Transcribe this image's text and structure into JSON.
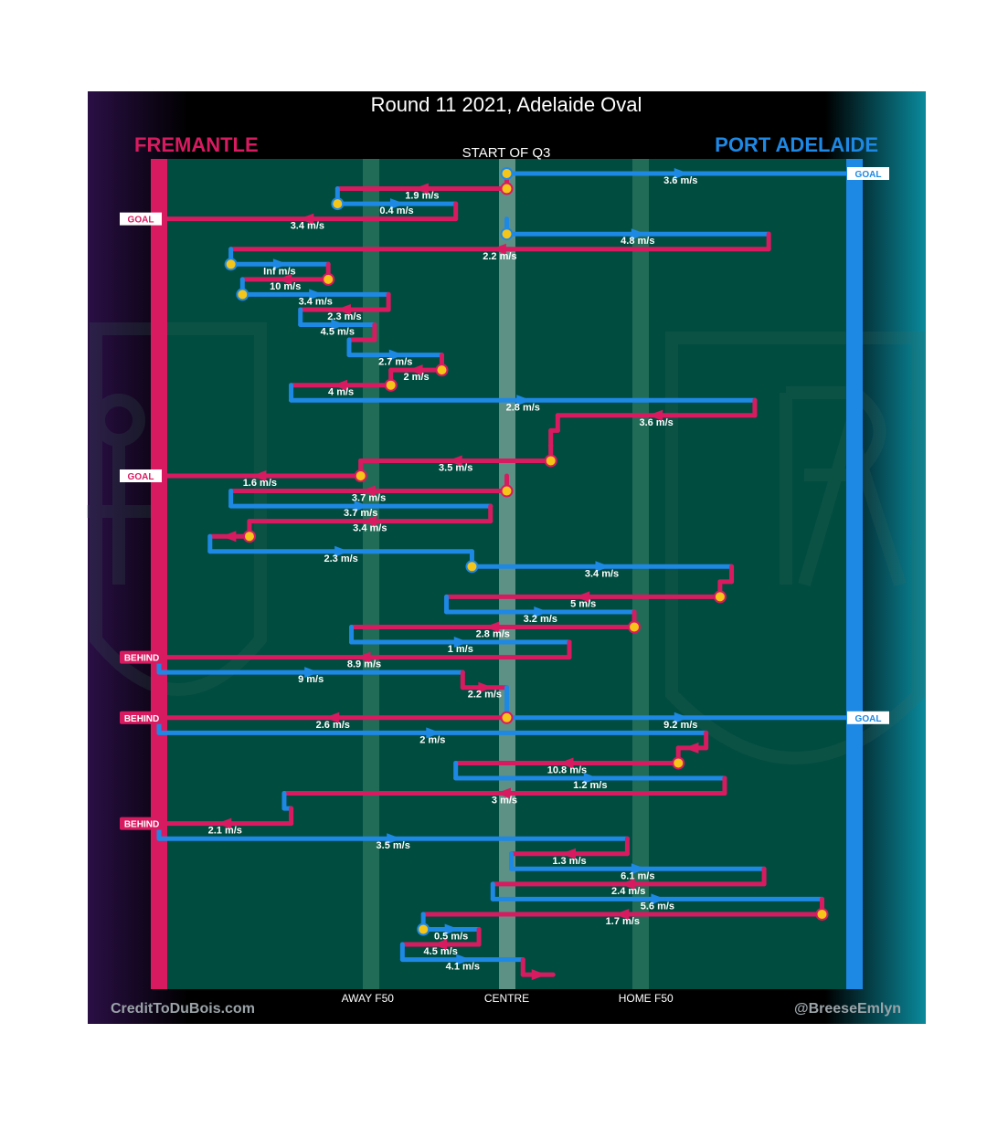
{
  "header": {
    "title": "Round 11 2021, Adelaide Oval",
    "subtitle": "START OF Q3",
    "team_left": "FREMANTLE",
    "team_right": "PORT ADELAIDE",
    "credit_left": "CreditToDuBois.com",
    "credit_right": "@BreeseEmlyn"
  },
  "colors": {
    "fremantle": "#d81b60",
    "port": "#1e88e5",
    "field": "#004c3f",
    "marker": "#f5c518"
  },
  "chart_data": {
    "type": "line",
    "x_ticks": [
      {
        "label": "AWAY F50",
        "x": -0.6
      },
      {
        "label": "CENTRE",
        "x": 0
      },
      {
        "label": "HOME F50",
        "x": 0.6
      }
    ],
    "xlim": [
      -1.5,
      1.5
    ],
    "tags": [
      {
        "label": "GOAL",
        "side": "right",
        "row": 0
      },
      {
        "label": "GOAL",
        "side": "left",
        "row": 3
      },
      {
        "label": "GOAL",
        "side": "left",
        "row": 20
      },
      {
        "label": "BEHIND",
        "side": "left",
        "row": 32
      },
      {
        "label": "GOAL",
        "side": "right",
        "row": 36
      },
      {
        "label": "BEHIND",
        "side": "left",
        "row": 36
      },
      {
        "label": "BEHIND",
        "side": "left",
        "row": 43
      }
    ],
    "chains": [
      {
        "team": "port",
        "x0": 0.0,
        "x1": 1.5,
        "row": 0,
        "speed": "3.6 m/s",
        "start": "turnover"
      },
      {
        "team": "fremantle",
        "x0": 0.0,
        "x1": -0.73,
        "row": 1,
        "speed": "1.9 m/s",
        "start": "turnover"
      },
      {
        "team": "port",
        "x0": -0.73,
        "x1": -0.22,
        "row": 2,
        "speed": "0.4 m/s",
        "start": "turnover"
      },
      {
        "team": "fremantle",
        "x0": -0.22,
        "x1": -1.5,
        "row": 3,
        "speed": "3.4 m/s"
      },
      {
        "team": "port",
        "x0": 0.0,
        "x1": 1.13,
        "row": 4,
        "speed": "4.8 m/s",
        "start": "turnover"
      },
      {
        "team": "fremantle",
        "x0": 1.13,
        "x1": -1.19,
        "row": 5,
        "speed": "2.2 m/s"
      },
      {
        "team": "port",
        "x0": -1.19,
        "x1": -0.77,
        "row": 6,
        "speed": "Inf m/s",
        "start": "turnover"
      },
      {
        "team": "fremantle",
        "x0": -0.77,
        "x1": -1.14,
        "row": 7,
        "speed": "10 m/s",
        "start": "turnover"
      },
      {
        "team": "port",
        "x0": -1.14,
        "x1": -0.51,
        "row": 8,
        "speed": "3.4 m/s",
        "start": "turnover"
      },
      {
        "team": "fremantle",
        "x0": -0.51,
        "x1": -0.89,
        "row": 9,
        "speed": "2.3 m/s"
      },
      {
        "team": "port",
        "x0": -0.89,
        "x1": -0.57,
        "row": 10,
        "speed": "4.5 m/s"
      },
      {
        "team": "fremantle",
        "x0": -0.57,
        "x1": -0.68,
        "row": 11,
        "speed": ""
      },
      {
        "team": "port",
        "x0": -0.68,
        "x1": -0.28,
        "row": 12,
        "speed": "2.7 m/s"
      },
      {
        "team": "fremantle",
        "x0": -0.28,
        "x1": -0.5,
        "row": 13,
        "speed": "2 m/s",
        "start": "turnover"
      },
      {
        "team": "fremantle",
        "x0": -0.5,
        "x1": -0.93,
        "row": 14,
        "speed": "4 m/s",
        "start": "turnover"
      },
      {
        "team": "port",
        "x0": -0.93,
        "x1": 1.07,
        "row": 15,
        "speed": "2.8 m/s"
      },
      {
        "team": "fremantle",
        "x0": 1.07,
        "x1": 0.22,
        "row": 16,
        "speed": "3.6 m/s"
      },
      {
        "team": "fremantle",
        "x0": 0.22,
        "x1": 0.19,
        "row": 17,
        "speed": ""
      },
      {
        "team": "fremantle",
        "x0": 0.19,
        "x1": 0.19,
        "row": 18,
        "speed": ""
      },
      {
        "team": "fremantle",
        "x0": 0.19,
        "x1": -0.63,
        "row": 19,
        "speed": "3.5 m/s",
        "start": "turnover"
      },
      {
        "team": "fremantle",
        "x0": -0.63,
        "x1": -1.5,
        "row": 20,
        "speed": "1.6 m/s",
        "start": "turnover"
      },
      {
        "team": "fremantle",
        "x0": 0.0,
        "x1": -1.19,
        "row": 21,
        "speed": "3.7 m/s",
        "start": "turnover"
      },
      {
        "team": "port",
        "x0": -1.19,
        "x1": -0.07,
        "row": 22,
        "speed": "3.7 m/s"
      },
      {
        "team": "fremantle",
        "x0": -0.07,
        "x1": -1.11,
        "row": 23,
        "speed": "3.4 m/s"
      },
      {
        "team": "fremantle",
        "x0": -1.11,
        "x1": -1.28,
        "row": 24,
        "speed": "",
        "start": "turnover"
      },
      {
        "team": "port",
        "x0": -1.28,
        "x1": -0.15,
        "row": 25,
        "speed": "2.3 m/s"
      },
      {
        "team": "port",
        "x0": -0.15,
        "x1": 0.97,
        "row": 26,
        "speed": "3.4 m/s",
        "start": "turnover"
      },
      {
        "team": "fremantle",
        "x0": 0.97,
        "x1": 0.92,
        "row": 27,
        "speed": ""
      },
      {
        "team": "fremantle",
        "x0": 0.92,
        "x1": -0.26,
        "row": 28,
        "speed": "5 m/s",
        "start": "turnover"
      },
      {
        "team": "port",
        "x0": -0.26,
        "x1": 0.55,
        "row": 29,
        "speed": "3.2 m/s"
      },
      {
        "team": "fremantle",
        "x0": 0.55,
        "x1": -0.67,
        "row": 30,
        "speed": "2.8 m/s",
        "start": "turnover"
      },
      {
        "team": "port",
        "x0": -0.67,
        "x1": 0.27,
        "row": 31,
        "speed": "1 m/s"
      },
      {
        "team": "fremantle",
        "x0": 0.27,
        "x1": -1.5,
        "row": 32,
        "speed": "8.9 m/s"
      },
      {
        "team": "port",
        "x0": -1.5,
        "x1": -0.19,
        "row": 33,
        "speed": "9 m/s"
      },
      {
        "team": "fremantle",
        "x0": -0.19,
        "x1": 0.0,
        "row": 34,
        "speed": "2.2 m/s"
      },
      {
        "team": "port",
        "x0": 0.0,
        "x1": 1.5,
        "row": 36,
        "speed": "9.2 m/s"
      },
      {
        "team": "fremantle",
        "x0": 0.0,
        "x1": -1.5,
        "row": 36,
        "speed": "2.6 m/s",
        "start": "turnover"
      },
      {
        "team": "port",
        "x0": -1.5,
        "x1": 0.86,
        "row": 37,
        "speed": "2 m/s"
      },
      {
        "team": "fremantle",
        "x0": 0.86,
        "x1": 0.74,
        "row": 38,
        "speed": ""
      },
      {
        "team": "fremantle",
        "x0": 0.74,
        "x1": -0.22,
        "row": 39,
        "speed": "10.8 m/s",
        "start": "turnover"
      },
      {
        "team": "port",
        "x0": -0.22,
        "x1": 0.94,
        "row": 40,
        "speed": "1.2 m/s"
      },
      {
        "team": "fremantle",
        "x0": 0.94,
        "x1": -0.96,
        "row": 41,
        "speed": "3 m/s"
      },
      {
        "team": "port",
        "x0": -0.96,
        "x1": -0.93,
        "row": 42,
        "speed": ""
      },
      {
        "team": "fremantle",
        "x0": -0.93,
        "x1": -1.5,
        "row": 43,
        "speed": "2.1 m/s"
      },
      {
        "team": "port",
        "x0": -1.5,
        "x1": 0.52,
        "row": 44,
        "speed": "3.5 m/s"
      },
      {
        "team": "fremantle",
        "x0": 0.52,
        "x1": 0.02,
        "row": 45,
        "speed": "1.3 m/s"
      },
      {
        "team": "port",
        "x0": 0.02,
        "x1": 1.11,
        "row": 46,
        "speed": "6.1 m/s"
      },
      {
        "team": "fremantle",
        "x0": 1.11,
        "x1": -0.06,
        "row": 47,
        "speed": "2.4 m/s"
      },
      {
        "team": "port",
        "x0": -0.06,
        "x1": 1.36,
        "row": 48,
        "speed": "5.6 m/s"
      },
      {
        "team": "fremantle",
        "x0": 1.36,
        "x1": -0.36,
        "row": 49,
        "speed": "1.7 m/s",
        "start": "turnover"
      },
      {
        "team": "port",
        "x0": -0.36,
        "x1": -0.12,
        "row": 50,
        "speed": "0.5 m/s",
        "start": "turnover"
      },
      {
        "team": "fremantle",
        "x0": -0.12,
        "x1": -0.45,
        "row": 51,
        "speed": "4.5 m/s"
      },
      {
        "team": "port",
        "x0": -0.45,
        "x1": 0.07,
        "row": 52,
        "speed": "4.1 m/s"
      },
      {
        "team": "fremantle",
        "x0": 0.07,
        "x1": 0.2,
        "row": 53,
        "speed": ""
      }
    ]
  }
}
